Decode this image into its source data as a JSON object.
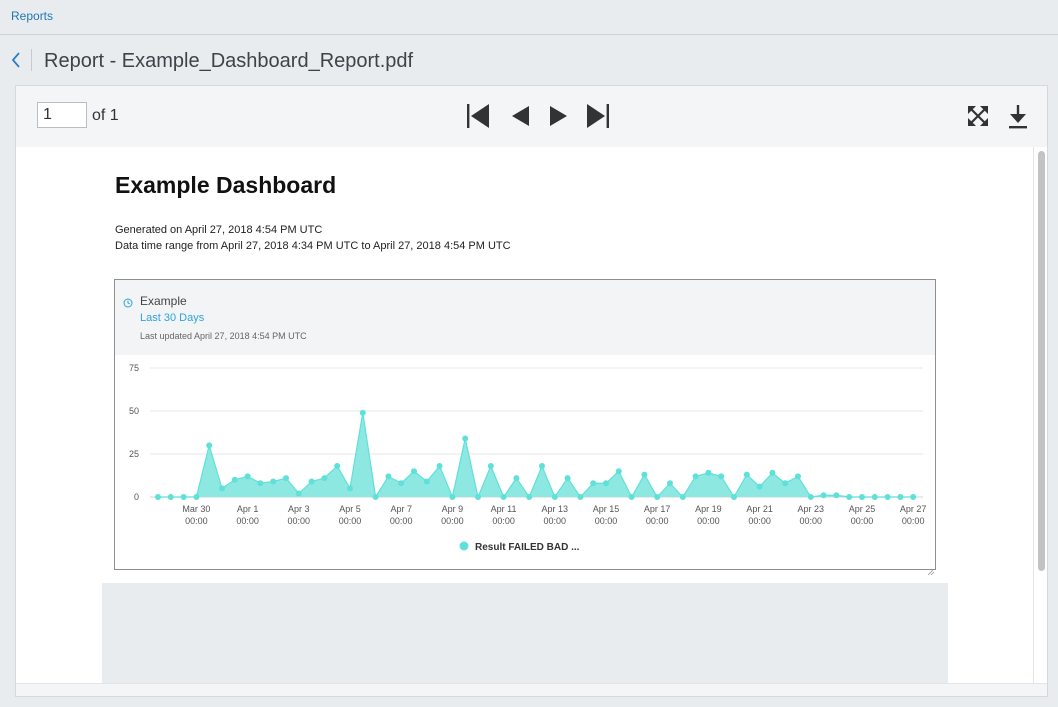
{
  "breadcrumb": {
    "root": "Reports"
  },
  "page": {
    "title": "Report - Example_Dashboard_Report.pdf"
  },
  "toolbar": {
    "page_value": "1",
    "page_of": "of 1"
  },
  "report": {
    "title": "Example Dashboard",
    "generated": "Generated on April 27, 2018 4:54 PM UTC",
    "time_range": "Data time range from April 27, 2018 4:34 PM UTC to April 27, 2018 4:54 PM UTC"
  },
  "panel": {
    "name": "Example",
    "range_link": "Last 30 Days",
    "last_updated": "Last updated April 27, 2018 4:54 PM UTC"
  },
  "colors": {
    "series": "#5fe0d9",
    "series_fill": "#8ee8e2",
    "link": "#2ea3dc"
  },
  "chart_data": {
    "type": "area",
    "ylim": [
      0,
      75
    ],
    "yticks": [
      0,
      25,
      50,
      75
    ],
    "grid": true,
    "legend_position": "bottom",
    "xtick_labels": [
      {
        "i": 3,
        "line1": "Mar 30",
        "line2": "00:00"
      },
      {
        "i": 7,
        "line1": "Apr 1",
        "line2": "00:00"
      },
      {
        "i": 11,
        "line1": "Apr 3",
        "line2": "00:00"
      },
      {
        "i": 15,
        "line1": "Apr 5",
        "line2": "00:00"
      },
      {
        "i": 19,
        "line1": "Apr 7",
        "line2": "00:00"
      },
      {
        "i": 23,
        "line1": "Apr 9",
        "line2": "00:00"
      },
      {
        "i": 27,
        "line1": "Apr 11",
        "line2": "00:00"
      },
      {
        "i": 31,
        "line1": "Apr 13",
        "line2": "00:00"
      },
      {
        "i": 35,
        "line1": "Apr 15",
        "line2": "00:00"
      },
      {
        "i": 39,
        "line1": "Apr 17",
        "line2": "00:00"
      },
      {
        "i": 43,
        "line1": "Apr 19",
        "line2": "00:00"
      },
      {
        "i": 47,
        "line1": "Apr 21",
        "line2": "00:00"
      },
      {
        "i": 51,
        "line1": "Apr 23",
        "line2": "00:00"
      },
      {
        "i": 55,
        "line1": "Apr 25",
        "line2": "00:00"
      },
      {
        "i": 59,
        "line1": "Apr 27",
        "line2": "00:00"
      }
    ],
    "series": [
      {
        "name": "Result FAILED BAD ...",
        "values": [
          0,
          0,
          0,
          0,
          30,
          5,
          10,
          12,
          8,
          9,
          11,
          2,
          9,
          11,
          18,
          5,
          49,
          0,
          12,
          8,
          15,
          9,
          18,
          0,
          34,
          0,
          18,
          0,
          11,
          0,
          18,
          0,
          11,
          0,
          8,
          8,
          15,
          0,
          13,
          0,
          8,
          0,
          12,
          14,
          12,
          0,
          13,
          6,
          14,
          8,
          12,
          0,
          1,
          1,
          0,
          0,
          0,
          0,
          0,
          0
        ]
      }
    ]
  }
}
